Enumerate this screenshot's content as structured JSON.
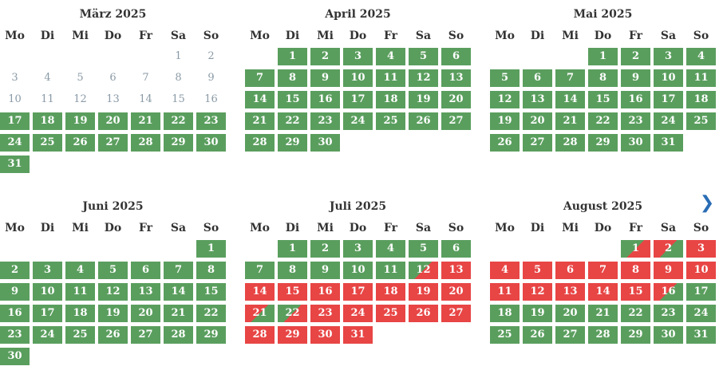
{
  "weekdays": [
    "Mo",
    "Di",
    "Mi",
    "Do",
    "Fr",
    "Sa",
    "So"
  ],
  "nav": {
    "next_icon": "chevron-right-icon",
    "next_glyph": "❯"
  },
  "colors": {
    "free": "#5a9e5e",
    "booked": "#e84545",
    "past": "#8a9aa6",
    "nav": "#2a6db5"
  },
  "months": [
    {
      "title": "März 2025",
      "first_weekday": 6,
      "days": [
        {
          "d": "1",
          "s": "past"
        },
        {
          "d": "2",
          "s": "past"
        },
        {
          "d": "3",
          "s": "past"
        },
        {
          "d": "4",
          "s": "past"
        },
        {
          "d": "5",
          "s": "past"
        },
        {
          "d": "6",
          "s": "past"
        },
        {
          "d": "7",
          "s": "past"
        },
        {
          "d": "8",
          "s": "past"
        },
        {
          "d": "9",
          "s": "past"
        },
        {
          "d": "10",
          "s": "past"
        },
        {
          "d": "11",
          "s": "past"
        },
        {
          "d": "12",
          "s": "past"
        },
        {
          "d": "13",
          "s": "past"
        },
        {
          "d": "14",
          "s": "past"
        },
        {
          "d": "15",
          "s": "past"
        },
        {
          "d": "16",
          "s": "past"
        },
        {
          "d": "17",
          "s": "free"
        },
        {
          "d": "18",
          "s": "free"
        },
        {
          "d": "19",
          "s": "free"
        },
        {
          "d": "20",
          "s": "free"
        },
        {
          "d": "21",
          "s": "free"
        },
        {
          "d": "22",
          "s": "free"
        },
        {
          "d": "23",
          "s": "free"
        },
        {
          "d": "24",
          "s": "free"
        },
        {
          "d": "25",
          "s": "free"
        },
        {
          "d": "26",
          "s": "free"
        },
        {
          "d": "27",
          "s": "free"
        },
        {
          "d": "28",
          "s": "free"
        },
        {
          "d": "29",
          "s": "free"
        },
        {
          "d": "30",
          "s": "free"
        },
        {
          "d": "31",
          "s": "free"
        }
      ]
    },
    {
      "title": "April 2025",
      "first_weekday": 2,
      "days": [
        {
          "d": "1",
          "s": "free"
        },
        {
          "d": "2",
          "s": "free"
        },
        {
          "d": "3",
          "s": "free"
        },
        {
          "d": "4",
          "s": "free"
        },
        {
          "d": "5",
          "s": "free"
        },
        {
          "d": "6",
          "s": "free"
        },
        {
          "d": "7",
          "s": "free"
        },
        {
          "d": "8",
          "s": "free"
        },
        {
          "d": "9",
          "s": "free"
        },
        {
          "d": "10",
          "s": "free"
        },
        {
          "d": "11",
          "s": "free"
        },
        {
          "d": "12",
          "s": "free"
        },
        {
          "d": "13",
          "s": "free"
        },
        {
          "d": "14",
          "s": "free"
        },
        {
          "d": "15",
          "s": "free"
        },
        {
          "d": "16",
          "s": "free"
        },
        {
          "d": "17",
          "s": "free"
        },
        {
          "d": "18",
          "s": "free"
        },
        {
          "d": "19",
          "s": "free"
        },
        {
          "d": "20",
          "s": "free"
        },
        {
          "d": "21",
          "s": "free"
        },
        {
          "d": "22",
          "s": "free"
        },
        {
          "d": "23",
          "s": "free"
        },
        {
          "d": "24",
          "s": "free"
        },
        {
          "d": "25",
          "s": "free"
        },
        {
          "d": "26",
          "s": "free"
        },
        {
          "d": "27",
          "s": "free"
        },
        {
          "d": "28",
          "s": "free"
        },
        {
          "d": "29",
          "s": "free"
        },
        {
          "d": "30",
          "s": "free"
        }
      ]
    },
    {
      "title": "Mai 2025",
      "first_weekday": 4,
      "days": [
        {
          "d": "1",
          "s": "free"
        },
        {
          "d": "2",
          "s": "free"
        },
        {
          "d": "3",
          "s": "free"
        },
        {
          "d": "4",
          "s": "free"
        },
        {
          "d": "5",
          "s": "free"
        },
        {
          "d": "6",
          "s": "free"
        },
        {
          "d": "7",
          "s": "free"
        },
        {
          "d": "8",
          "s": "free"
        },
        {
          "d": "9",
          "s": "free"
        },
        {
          "d": "10",
          "s": "free"
        },
        {
          "d": "11",
          "s": "free"
        },
        {
          "d": "12",
          "s": "free"
        },
        {
          "d": "13",
          "s": "free"
        },
        {
          "d": "14",
          "s": "free"
        },
        {
          "d": "15",
          "s": "free"
        },
        {
          "d": "16",
          "s": "free"
        },
        {
          "d": "17",
          "s": "free"
        },
        {
          "d": "18",
          "s": "free"
        },
        {
          "d": "19",
          "s": "free"
        },
        {
          "d": "20",
          "s": "free"
        },
        {
          "d": "21",
          "s": "free"
        },
        {
          "d": "22",
          "s": "free"
        },
        {
          "d": "23",
          "s": "free"
        },
        {
          "d": "24",
          "s": "free"
        },
        {
          "d": "25",
          "s": "free"
        },
        {
          "d": "26",
          "s": "free"
        },
        {
          "d": "27",
          "s": "free"
        },
        {
          "d": "28",
          "s": "free"
        },
        {
          "d": "29",
          "s": "free"
        },
        {
          "d": "30",
          "s": "free"
        },
        {
          "d": "31",
          "s": "free"
        }
      ]
    },
    {
      "title": "Juni 2025",
      "first_weekday": 7,
      "days": [
        {
          "d": "1",
          "s": "free"
        },
        {
          "d": "2",
          "s": "free"
        },
        {
          "d": "3",
          "s": "free"
        },
        {
          "d": "4",
          "s": "free"
        },
        {
          "d": "5",
          "s": "free"
        },
        {
          "d": "6",
          "s": "free"
        },
        {
          "d": "7",
          "s": "free"
        },
        {
          "d": "8",
          "s": "free"
        },
        {
          "d": "9",
          "s": "free"
        },
        {
          "d": "10",
          "s": "free"
        },
        {
          "d": "11",
          "s": "free"
        },
        {
          "d": "12",
          "s": "free"
        },
        {
          "d": "13",
          "s": "free"
        },
        {
          "d": "14",
          "s": "free"
        },
        {
          "d": "15",
          "s": "free"
        },
        {
          "d": "16",
          "s": "free"
        },
        {
          "d": "17",
          "s": "free"
        },
        {
          "d": "18",
          "s": "free"
        },
        {
          "d": "19",
          "s": "free"
        },
        {
          "d": "20",
          "s": "free"
        },
        {
          "d": "21",
          "s": "free"
        },
        {
          "d": "22",
          "s": "free"
        },
        {
          "d": "23",
          "s": "free"
        },
        {
          "d": "24",
          "s": "free"
        },
        {
          "d": "25",
          "s": "free"
        },
        {
          "d": "26",
          "s": "free"
        },
        {
          "d": "27",
          "s": "free"
        },
        {
          "d": "28",
          "s": "free"
        },
        {
          "d": "29",
          "s": "free"
        },
        {
          "d": "30",
          "s": "free"
        }
      ]
    },
    {
      "title": "Juli 2025",
      "first_weekday": 2,
      "days": [
        {
          "d": "1",
          "s": "free"
        },
        {
          "d": "2",
          "s": "free"
        },
        {
          "d": "3",
          "s": "free"
        },
        {
          "d": "4",
          "s": "free"
        },
        {
          "d": "5",
          "s": "free"
        },
        {
          "d": "6",
          "s": "free"
        },
        {
          "d": "7",
          "s": "free"
        },
        {
          "d": "8",
          "s": "free"
        },
        {
          "d": "9",
          "s": "free"
        },
        {
          "d": "10",
          "s": "free"
        },
        {
          "d": "11",
          "s": "free"
        },
        {
          "d": "12",
          "s": "arrive"
        },
        {
          "d": "13",
          "s": "booked"
        },
        {
          "d": "14",
          "s": "booked"
        },
        {
          "d": "15",
          "s": "booked"
        },
        {
          "d": "16",
          "s": "booked"
        },
        {
          "d": "17",
          "s": "booked"
        },
        {
          "d": "18",
          "s": "booked"
        },
        {
          "d": "19",
          "s": "booked"
        },
        {
          "d": "20",
          "s": "booked"
        },
        {
          "d": "21",
          "s": "depart"
        },
        {
          "d": "22",
          "s": "arrive"
        },
        {
          "d": "23",
          "s": "booked"
        },
        {
          "d": "24",
          "s": "booked"
        },
        {
          "d": "25",
          "s": "booked"
        },
        {
          "d": "26",
          "s": "booked"
        },
        {
          "d": "27",
          "s": "booked"
        },
        {
          "d": "28",
          "s": "booked"
        },
        {
          "d": "29",
          "s": "booked"
        },
        {
          "d": "30",
          "s": "booked"
        },
        {
          "d": "31",
          "s": "booked"
        }
      ]
    },
    {
      "title": "August 2025",
      "first_weekday": 5,
      "days": [
        {
          "d": "1",
          "s": "arrive"
        },
        {
          "d": "2",
          "s": "depart"
        },
        {
          "d": "3",
          "s": "booked"
        },
        {
          "d": "4",
          "s": "booked"
        },
        {
          "d": "5",
          "s": "booked"
        },
        {
          "d": "6",
          "s": "booked"
        },
        {
          "d": "7",
          "s": "booked"
        },
        {
          "d": "8",
          "s": "booked"
        },
        {
          "d": "9",
          "s": "booked"
        },
        {
          "d": "10",
          "s": "booked"
        },
        {
          "d": "11",
          "s": "booked"
        },
        {
          "d": "12",
          "s": "booked"
        },
        {
          "d": "13",
          "s": "booked"
        },
        {
          "d": "14",
          "s": "booked"
        },
        {
          "d": "15",
          "s": "booked"
        },
        {
          "d": "16",
          "s": "depart"
        },
        {
          "d": "17",
          "s": "free"
        },
        {
          "d": "18",
          "s": "free"
        },
        {
          "d": "19",
          "s": "free"
        },
        {
          "d": "20",
          "s": "free"
        },
        {
          "d": "21",
          "s": "free"
        },
        {
          "d": "22",
          "s": "free"
        },
        {
          "d": "23",
          "s": "free"
        },
        {
          "d": "24",
          "s": "free"
        },
        {
          "d": "25",
          "s": "free"
        },
        {
          "d": "26",
          "s": "free"
        },
        {
          "d": "27",
          "s": "free"
        },
        {
          "d": "28",
          "s": "free"
        },
        {
          "d": "29",
          "s": "free"
        },
        {
          "d": "30",
          "s": "free"
        },
        {
          "d": "31",
          "s": "free"
        }
      ]
    }
  ]
}
